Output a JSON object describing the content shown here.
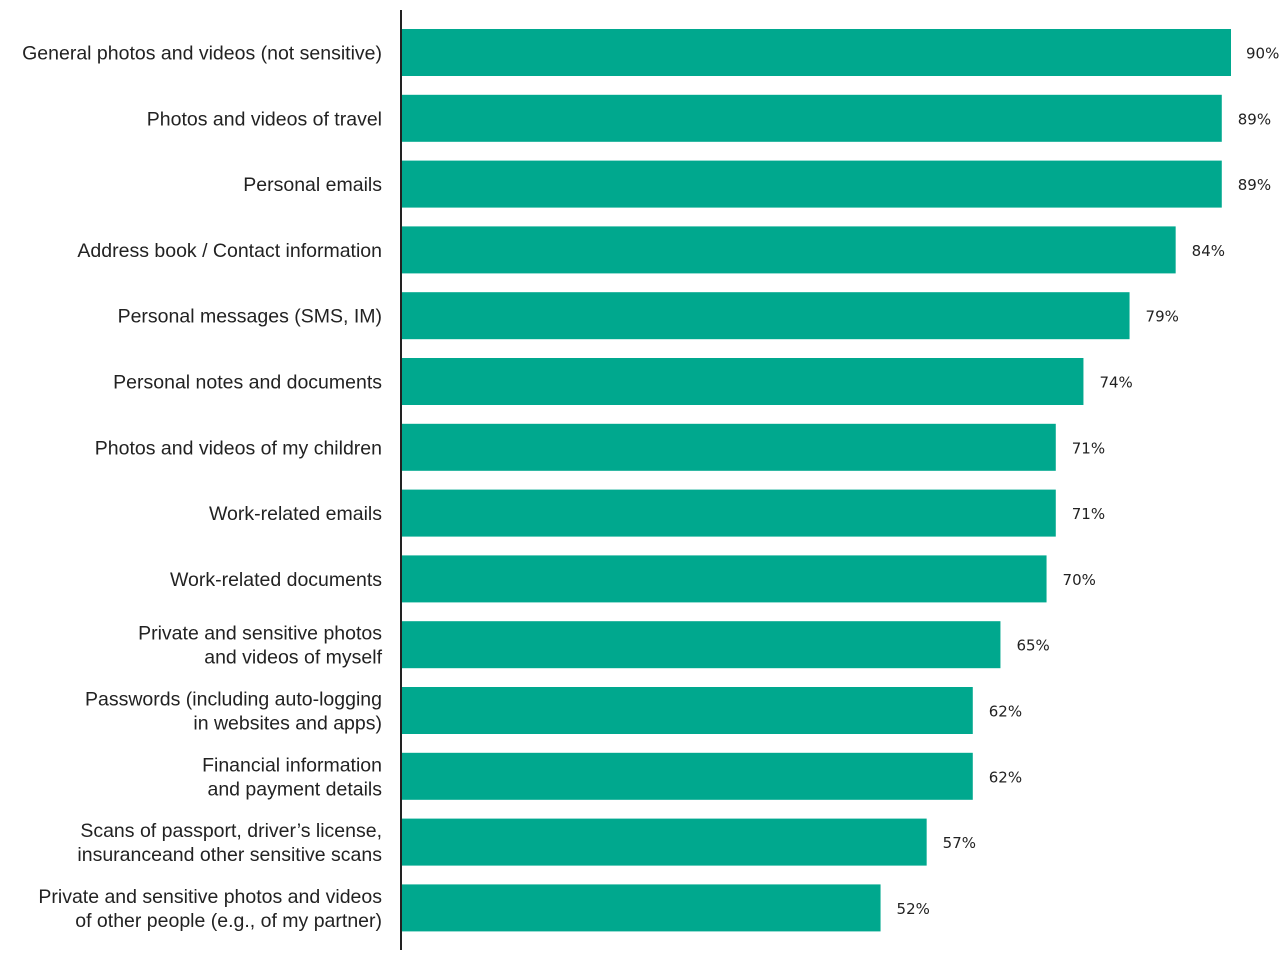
{
  "chart_data": {
    "type": "bar",
    "orientation": "horizontal",
    "title": "",
    "xlabel": "",
    "ylabel": "",
    "xlim": [
      0,
      90
    ],
    "grid": false,
    "legend": "none",
    "bar_color": "#00a88e",
    "value_suffix": "%",
    "categories": [
      [
        "General photos and videos (not sensitive)"
      ],
      [
        "Photos and videos of travel"
      ],
      [
        "Personal emails"
      ],
      [
        "Address book / Contact information"
      ],
      [
        "Personal messages (SMS, IM)"
      ],
      [
        "Personal notes and documents"
      ],
      [
        "Photos and videos of my children"
      ],
      [
        "Work-related emails"
      ],
      [
        "Work-related documents"
      ],
      [
        "Private and sensitive photos",
        "and videos of myself"
      ],
      [
        "Passwords (including auto-logging",
        "in websites and apps)"
      ],
      [
        "Financial information",
        "and payment details"
      ],
      [
        "Scans of passport, driver’s license,",
        "insuranceand other sensitive scans"
      ],
      [
        "Private and sensitive photos and videos",
        "of other people (e.g., of my partner)"
      ]
    ],
    "values": [
      90,
      89,
      89,
      84,
      79,
      74,
      71,
      71,
      70,
      65,
      62,
      62,
      57,
      52
    ],
    "value_labels": [
      "90%",
      "89%",
      "89%",
      "84%",
      "79%",
      "74%",
      "71%",
      "71%",
      "70%",
      "65%",
      "62%",
      "62%",
      "57%",
      "52%"
    ]
  }
}
